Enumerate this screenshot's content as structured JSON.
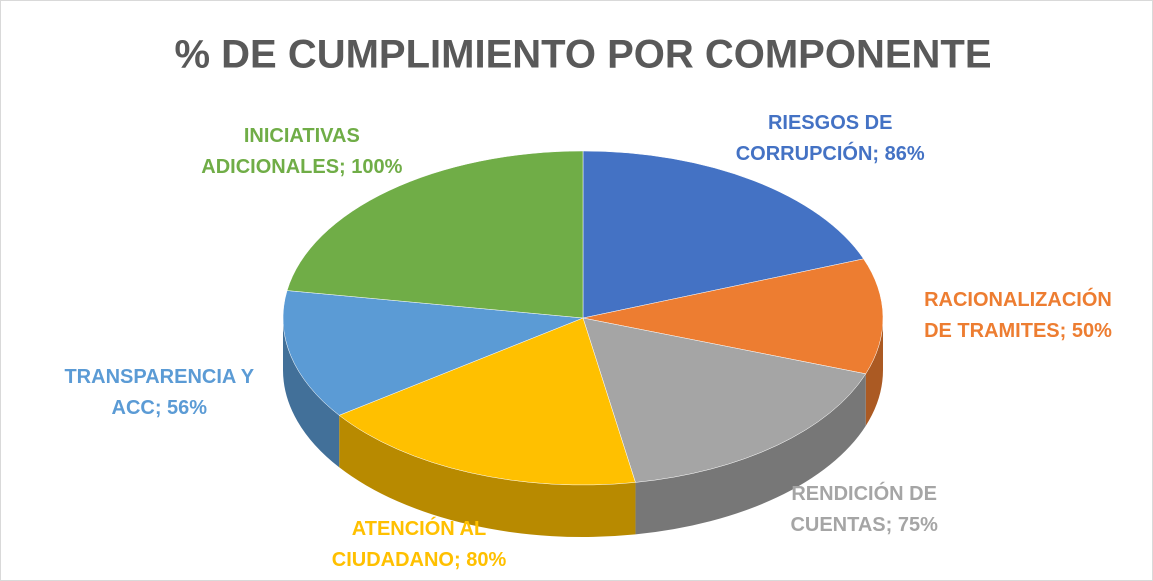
{
  "chart_data": {
    "type": "pie",
    "title": "% DE CUMPLIMIENTO POR COMPONENTE",
    "values": [
      86,
      50,
      75,
      80,
      56,
      100
    ],
    "value_labels": [
      "RIESGOS DE CORRUPCIÓN; 86%",
      "RACIONALIZACIÓN DE TRAMITES; 50%",
      "RENDICIÓN DE CUENTAS; 75%",
      "ATENCIÓN AL CIUDADANO; 80%",
      "TRANSPARENCIA Y ACC; 56%",
      "INICIATIVAS ADICIONALES; 100%"
    ],
    "colors": [
      "#4472c4",
      "#ed7d31",
      "#a5a5a5",
      "#ffc000",
      "#5b9bd5",
      "#70ad47"
    ]
  }
}
